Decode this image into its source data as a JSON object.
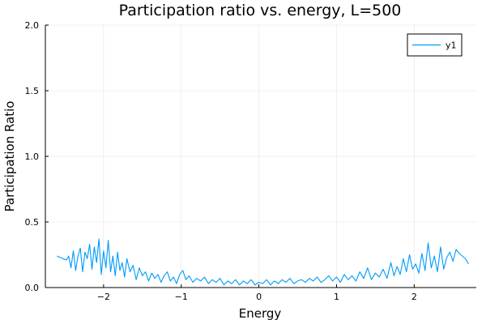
{
  "chart_data": {
    "type": "line",
    "title": "Participation ratio vs. energy, L=500",
    "xlabel": "Energy",
    "ylabel": "Participation Ratio",
    "xlim": [
      -2.75,
      2.8
    ],
    "ylim": [
      0.0,
      2.0
    ],
    "xticks": [
      -2,
      -1,
      0,
      1,
      2
    ],
    "xtick_labels": [
      "−2",
      "−1",
      "0",
      "1",
      "2"
    ],
    "yticks": [
      0.0,
      0.5,
      1.0,
      1.5,
      2.0
    ],
    "ytick_labels": [
      "0.0",
      "0.5",
      "1.0",
      "1.5",
      "2.0"
    ],
    "grid": true,
    "legend_position": "top-right",
    "series": [
      {
        "name": "y1",
        "color": "#009AFA",
        "x": [
          -2.6,
          -2.56,
          -2.52,
          -2.48,
          -2.45,
          -2.42,
          -2.39,
          -2.36,
          -2.33,
          -2.3,
          -2.27,
          -2.24,
          -2.21,
          -2.18,
          -2.15,
          -2.12,
          -2.09,
          -2.06,
          -2.03,
          -2.0,
          -1.97,
          -1.94,
          -1.91,
          -1.88,
          -1.85,
          -1.82,
          -1.79,
          -1.76,
          -1.73,
          -1.7,
          -1.66,
          -1.62,
          -1.58,
          -1.54,
          -1.5,
          -1.46,
          -1.42,
          -1.38,
          -1.34,
          -1.3,
          -1.26,
          -1.22,
          -1.18,
          -1.14,
          -1.1,
          -1.06,
          -1.02,
          -0.98,
          -0.94,
          -0.9,
          -0.85,
          -0.8,
          -0.75,
          -0.7,
          -0.65,
          -0.6,
          -0.55,
          -0.5,
          -0.45,
          -0.4,
          -0.35,
          -0.3,
          -0.25,
          -0.2,
          -0.15,
          -0.1,
          -0.05,
          0.0,
          0.05,
          0.1,
          0.15,
          0.2,
          0.25,
          0.3,
          0.35,
          0.4,
          0.45,
          0.5,
          0.55,
          0.6,
          0.65,
          0.7,
          0.75,
          0.8,
          0.85,
          0.9,
          0.95,
          1.0,
          1.05,
          1.1,
          1.15,
          1.2,
          1.25,
          1.3,
          1.35,
          1.4,
          1.45,
          1.5,
          1.55,
          1.6,
          1.65,
          1.7,
          1.74,
          1.78,
          1.82,
          1.86,
          1.9,
          1.94,
          1.98,
          2.02,
          2.06,
          2.1,
          2.14,
          2.18,
          2.22,
          2.26,
          2.3,
          2.34,
          2.38,
          2.42,
          2.46,
          2.5,
          2.54,
          2.58,
          2.62,
          2.66,
          2.7
        ],
        "y": [
          0.24,
          0.23,
          0.22,
          0.21,
          0.24,
          0.15,
          0.28,
          0.13,
          0.24,
          0.3,
          0.12,
          0.27,
          0.22,
          0.33,
          0.14,
          0.31,
          0.19,
          0.37,
          0.1,
          0.28,
          0.15,
          0.36,
          0.12,
          0.24,
          0.09,
          0.27,
          0.13,
          0.19,
          0.08,
          0.22,
          0.12,
          0.17,
          0.06,
          0.15,
          0.09,
          0.12,
          0.05,
          0.11,
          0.07,
          0.1,
          0.04,
          0.09,
          0.12,
          0.05,
          0.08,
          0.03,
          0.1,
          0.13,
          0.06,
          0.09,
          0.04,
          0.07,
          0.05,
          0.08,
          0.03,
          0.06,
          0.04,
          0.07,
          0.02,
          0.05,
          0.03,
          0.06,
          0.02,
          0.05,
          0.03,
          0.06,
          0.02,
          0.04,
          0.03,
          0.06,
          0.02,
          0.05,
          0.03,
          0.06,
          0.04,
          0.07,
          0.03,
          0.05,
          0.06,
          0.04,
          0.07,
          0.05,
          0.08,
          0.04,
          0.06,
          0.09,
          0.05,
          0.08,
          0.04,
          0.1,
          0.06,
          0.09,
          0.05,
          0.12,
          0.07,
          0.15,
          0.06,
          0.11,
          0.08,
          0.14,
          0.07,
          0.19,
          0.09,
          0.16,
          0.1,
          0.22,
          0.12,
          0.25,
          0.14,
          0.18,
          0.11,
          0.26,
          0.13,
          0.34,
          0.15,
          0.24,
          0.12,
          0.31,
          0.14,
          0.23,
          0.27,
          0.2,
          0.29,
          0.26,
          0.24,
          0.22,
          0.18
        ]
      }
    ]
  }
}
